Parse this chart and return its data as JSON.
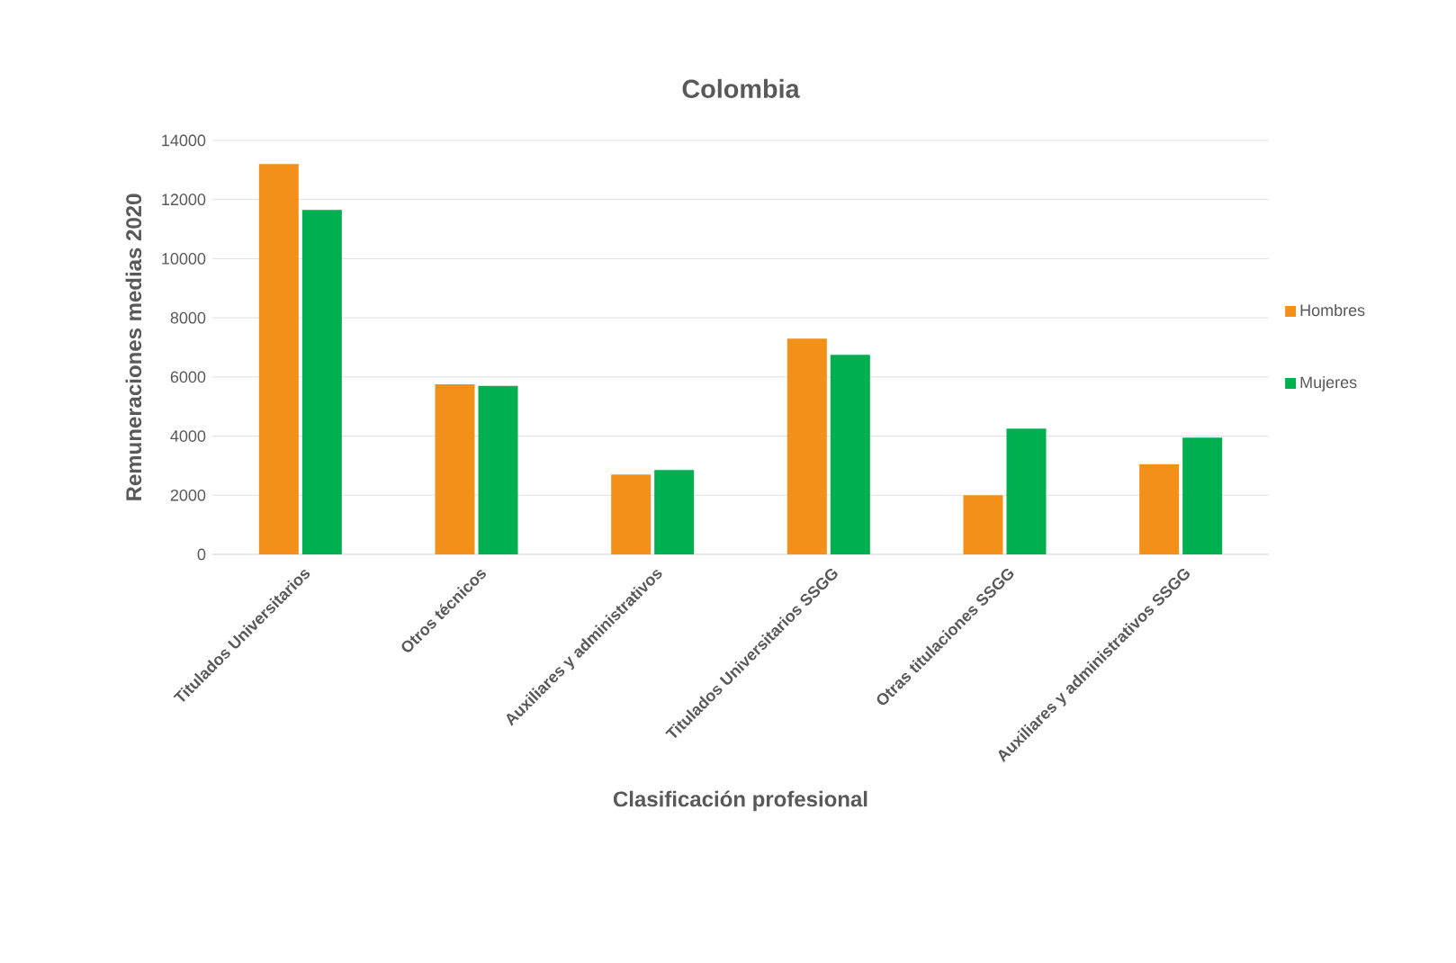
{
  "chart_data": {
    "type": "bar",
    "title": "Colombia",
    "xlabel": "Clasificación profesional",
    "ylabel": "Remuneraciones medias 2020",
    "categories": [
      "Titulados Universitarios",
      "Otros técnicos",
      "Auxiliares y administrativos",
      "Titulados Universitarios SSGG",
      "Otras titulaciones SSGG",
      "Auxiliares y administrativos SSGG"
    ],
    "series": [
      {
        "name": "Hombres",
        "color": "#f39019",
        "values": [
          13200,
          5750,
          2700,
          7300,
          2000,
          3050
        ]
      },
      {
        "name": "Mujeres",
        "color": "#00b050",
        "values": [
          11650,
          5700,
          2850,
          6750,
          4250,
          3950
        ]
      }
    ],
    "ylim": [
      0,
      14000
    ],
    "yticks": [
      0,
      2000,
      4000,
      6000,
      8000,
      10000,
      12000,
      14000
    ],
    "grid": "y",
    "legend": "right"
  }
}
